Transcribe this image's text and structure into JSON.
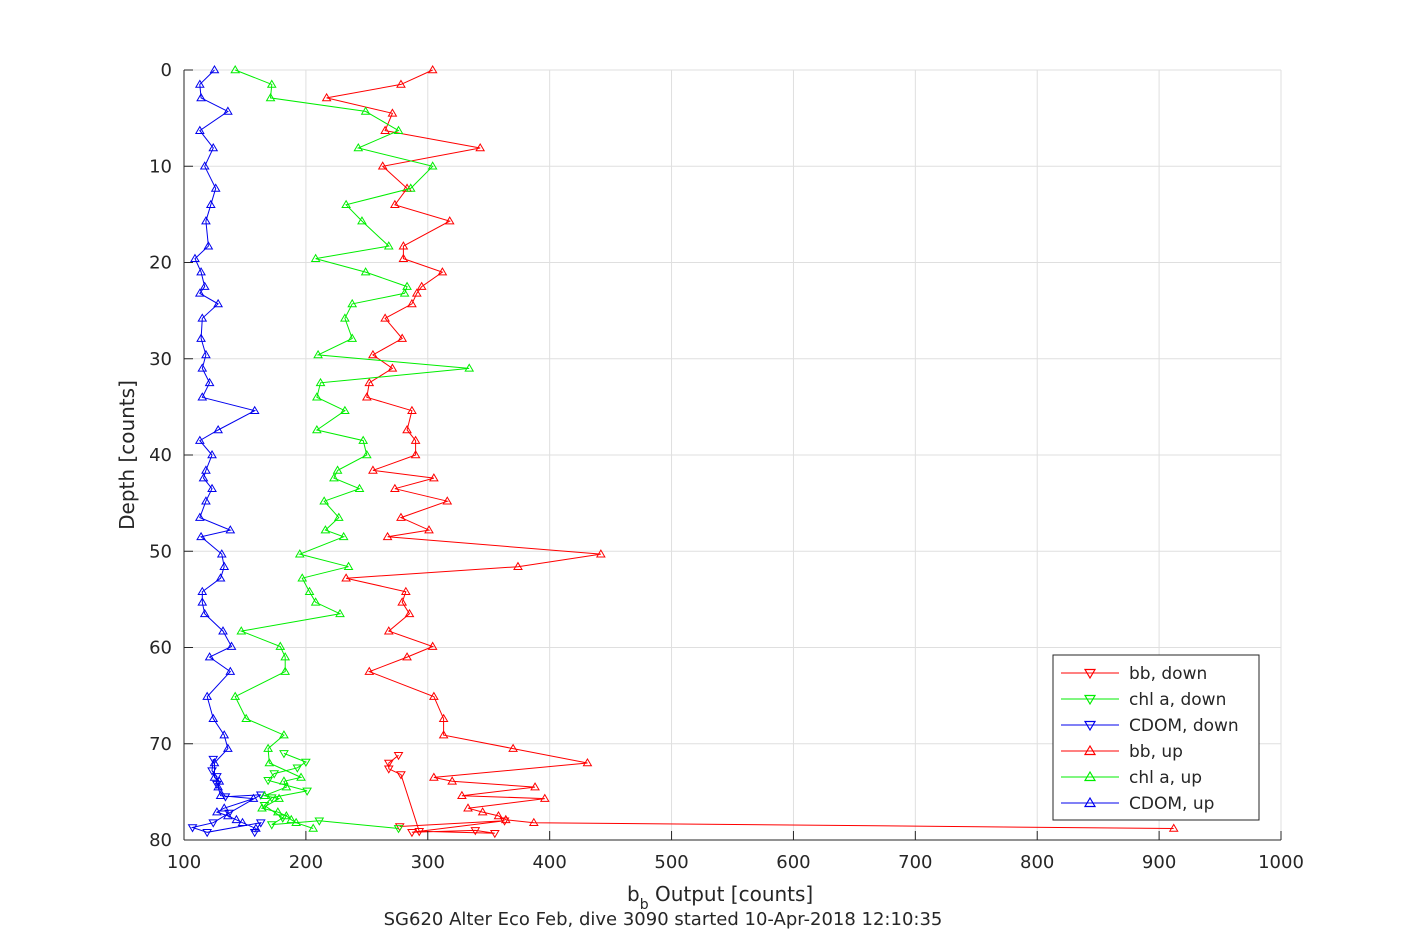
{
  "chart_data": {
    "type": "line",
    "title": "",
    "xlabel": "b",
    "xlabel_subscript": "b",
    "xlabel_rest": " Output [counts]",
    "ylabel": "Depth [counts]",
    "caption": "SG620 Alter Eco Feb, dive 3090 started 10-Apr-2018 12:10:35",
    "xlim": [
      100,
      1000
    ],
    "ylim": [
      0,
      80
    ],
    "y_reversed": true,
    "grid": true,
    "legend_position": "bottom-right",
    "xticks": [
      "100",
      "200",
      "300",
      "400",
      "500",
      "600",
      "700",
      "800",
      "900",
      "1000"
    ],
    "yticks": [
      "0",
      "10",
      "20",
      "30",
      "40",
      "50",
      "60",
      "70",
      "80"
    ],
    "series": [
      {
        "name": "bb, down",
        "color": "#ff0000",
        "marker": "down",
        "points": [
          [
            276,
            71.2
          ],
          [
            268,
            72
          ],
          [
            268,
            72.6
          ],
          [
            278,
            73.2
          ],
          [
            293,
            79.1
          ],
          [
            355,
            79.3
          ],
          [
            339,
            79.0
          ],
          [
            287,
            79.2
          ],
          [
            363,
            78.0
          ],
          [
            277,
            78.6
          ]
        ]
      },
      {
        "name": "chl a, down",
        "color": "#00ee00",
        "marker": "down",
        "points": [
          [
            182,
            71
          ],
          [
            200,
            71.9
          ],
          [
            193,
            72.5
          ],
          [
            174,
            73.1
          ],
          [
            169,
            73.8
          ],
          [
            201,
            74.9
          ],
          [
            172,
            75.6
          ],
          [
            166,
            76.4
          ],
          [
            181,
            77.7
          ],
          [
            172,
            78.4
          ],
          [
            211,
            78.0
          ],
          [
            276,
            78.8
          ]
        ]
      },
      {
        "name": "CDOM, down",
        "color": "#0000ee",
        "marker": "down",
        "points": [
          [
            124,
            71.6
          ],
          [
            123,
            72.8
          ],
          [
            127,
            73.4
          ],
          [
            127,
            74.2
          ],
          [
            134,
            75.5
          ],
          [
            163,
            75.3
          ],
          [
            137,
            77.2
          ],
          [
            124,
            78.2
          ],
          [
            107,
            78.7
          ],
          [
            119,
            79.2
          ],
          [
            163,
            78.2
          ],
          [
            158,
            79.2
          ]
        ]
      },
      {
        "name": "bb, up",
        "color": "#ff0000",
        "marker": "up",
        "points": [
          [
            304,
            0
          ],
          [
            278,
            1.5
          ],
          [
            217,
            2.9
          ],
          [
            271,
            4.5
          ],
          [
            265,
            6.3
          ],
          [
            343,
            8.1
          ],
          [
            263,
            10.0
          ],
          [
            283,
            12.3
          ],
          [
            273,
            14.0
          ],
          [
            318,
            15.7
          ],
          [
            280,
            18.3
          ],
          [
            280,
            19.6
          ],
          [
            312,
            21.0
          ],
          [
            295,
            22.5
          ],
          [
            291,
            23.2
          ],
          [
            287,
            24.3
          ],
          [
            265,
            25.8
          ],
          [
            279,
            27.9
          ],
          [
            255,
            29.6
          ],
          [
            271,
            31.0
          ],
          [
            252,
            32.5
          ],
          [
            250,
            34.0
          ],
          [
            287,
            35.4
          ],
          [
            283,
            37.4
          ],
          [
            290,
            38.5
          ],
          [
            290,
            40.0
          ],
          [
            255,
            41.6
          ],
          [
            305,
            42.4
          ],
          [
            273,
            43.5
          ],
          [
            316,
            44.8
          ],
          [
            278,
            46.5
          ],
          [
            301,
            47.8
          ],
          [
            267,
            48.5
          ],
          [
            442,
            50.3
          ],
          [
            374,
            51.6
          ],
          [
            233,
            52.8
          ],
          [
            282,
            54.2
          ],
          [
            279,
            55.3
          ],
          [
            285,
            56.5
          ],
          [
            268,
            58.3
          ],
          [
            304,
            59.9
          ],
          [
            283,
            61.0
          ],
          [
            252,
            62.5
          ],
          [
            305,
            65.1
          ],
          [
            313,
            67.4
          ],
          [
            313,
            69.1
          ],
          [
            370,
            70.5
          ],
          [
            431,
            72.0
          ],
          [
            305,
            73.5
          ],
          [
            320,
            73.9
          ],
          [
            388,
            74.5
          ],
          [
            328,
            75.4
          ],
          [
            396,
            75.7
          ],
          [
            333,
            76.7
          ],
          [
            345,
            77.1
          ],
          [
            358,
            77.5
          ],
          [
            364,
            77.9
          ],
          [
            387,
            78.2
          ],
          [
            912,
            78.8
          ]
        ]
      },
      {
        "name": "chl a, up",
        "color": "#00ee00",
        "marker": "up",
        "points": [
          [
            142,
            0
          ],
          [
            172,
            1.5
          ],
          [
            171,
            2.9
          ],
          [
            249,
            4.3
          ],
          [
            276,
            6.3
          ],
          [
            243,
            8.1
          ],
          [
            304,
            10.0
          ],
          [
            286,
            12.3
          ],
          [
            233,
            14.0
          ],
          [
            246,
            15.7
          ],
          [
            268,
            18.3
          ],
          [
            208,
            19.6
          ],
          [
            249,
            21.0
          ],
          [
            283,
            22.5
          ],
          [
            281,
            23.2
          ],
          [
            238,
            24.3
          ],
          [
            232,
            25.8
          ],
          [
            238,
            27.9
          ],
          [
            210,
            29.6
          ],
          [
            334,
            31.0
          ],
          [
            212,
            32.5
          ],
          [
            209,
            34.0
          ],
          [
            232,
            35.4
          ],
          [
            209,
            37.4
          ],
          [
            247,
            38.5
          ],
          [
            250,
            40.0
          ],
          [
            226,
            41.6
          ],
          [
            223,
            42.4
          ],
          [
            244,
            43.5
          ],
          [
            215,
            44.8
          ],
          [
            227,
            46.5
          ],
          [
            216,
            47.8
          ],
          [
            231,
            48.5
          ],
          [
            195,
            50.3
          ],
          [
            235,
            51.6
          ],
          [
            197,
            52.8
          ],
          [
            203,
            54.2
          ],
          [
            208,
            55.3
          ],
          [
            228,
            56.5
          ],
          [
            147,
            58.3
          ],
          [
            179,
            59.9
          ],
          [
            183,
            61.0
          ],
          [
            183,
            62.5
          ],
          [
            142,
            65.1
          ],
          [
            151,
            67.4
          ],
          [
            182,
            69.1
          ],
          [
            169,
            70.5
          ],
          [
            170,
            72.0
          ],
          [
            196,
            73.5
          ],
          [
            182,
            73.9
          ],
          [
            184,
            74.5
          ],
          [
            166,
            75.4
          ],
          [
            178,
            75.7
          ],
          [
            164,
            76.7
          ],
          [
            177,
            77.1
          ],
          [
            184,
            77.5
          ],
          [
            188,
            77.9
          ],
          [
            192,
            78.2
          ],
          [
            206,
            78.8
          ]
        ]
      },
      {
        "name": "CDOM, up",
        "color": "#0000ee",
        "marker": "up",
        "points": [
          [
            125,
            0
          ],
          [
            113,
            1.5
          ],
          [
            114,
            2.9
          ],
          [
            136,
            4.3
          ],
          [
            113,
            6.3
          ],
          [
            124,
            8.1
          ],
          [
            117,
            10.0
          ],
          [
            126,
            12.3
          ],
          [
            122,
            14.0
          ],
          [
            118,
            15.7
          ],
          [
            120,
            18.3
          ],
          [
            109,
            19.6
          ],
          [
            114,
            21.0
          ],
          [
            117,
            22.5
          ],
          [
            113,
            23.2
          ],
          [
            128,
            24.3
          ],
          [
            115,
            25.8
          ],
          [
            114,
            27.9
          ],
          [
            118,
            29.6
          ],
          [
            115,
            31.0
          ],
          [
            121,
            32.5
          ],
          [
            115,
            34.0
          ],
          [
            158,
            35.4
          ],
          [
            128,
            37.4
          ],
          [
            113,
            38.5
          ],
          [
            123,
            40.0
          ],
          [
            118,
            41.6
          ],
          [
            116,
            42.4
          ],
          [
            123,
            43.5
          ],
          [
            118,
            44.8
          ],
          [
            113,
            46.5
          ],
          [
            138,
            47.8
          ],
          [
            114,
            48.5
          ],
          [
            131,
            50.3
          ],
          [
            133,
            51.6
          ],
          [
            130,
            52.8
          ],
          [
            115,
            54.2
          ],
          [
            115,
            55.3
          ],
          [
            117,
            56.5
          ],
          [
            132,
            58.3
          ],
          [
            139,
            59.9
          ],
          [
            121,
            61.0
          ],
          [
            138,
            62.5
          ],
          [
            119,
            65.1
          ],
          [
            124,
            67.4
          ],
          [
            133,
            69.1
          ],
          [
            136,
            70.5
          ],
          [
            125,
            72.0
          ],
          [
            125,
            73.5
          ],
          [
            129,
            73.9
          ],
          [
            128,
            74.5
          ],
          [
            130,
            75.4
          ],
          [
            157,
            75.7
          ],
          [
            133,
            76.7
          ],
          [
            127,
            77.1
          ],
          [
            136,
            77.5
          ],
          [
            143,
            77.9
          ],
          [
            148,
            78.2
          ],
          [
            159,
            78.8
          ]
        ]
      }
    ]
  }
}
